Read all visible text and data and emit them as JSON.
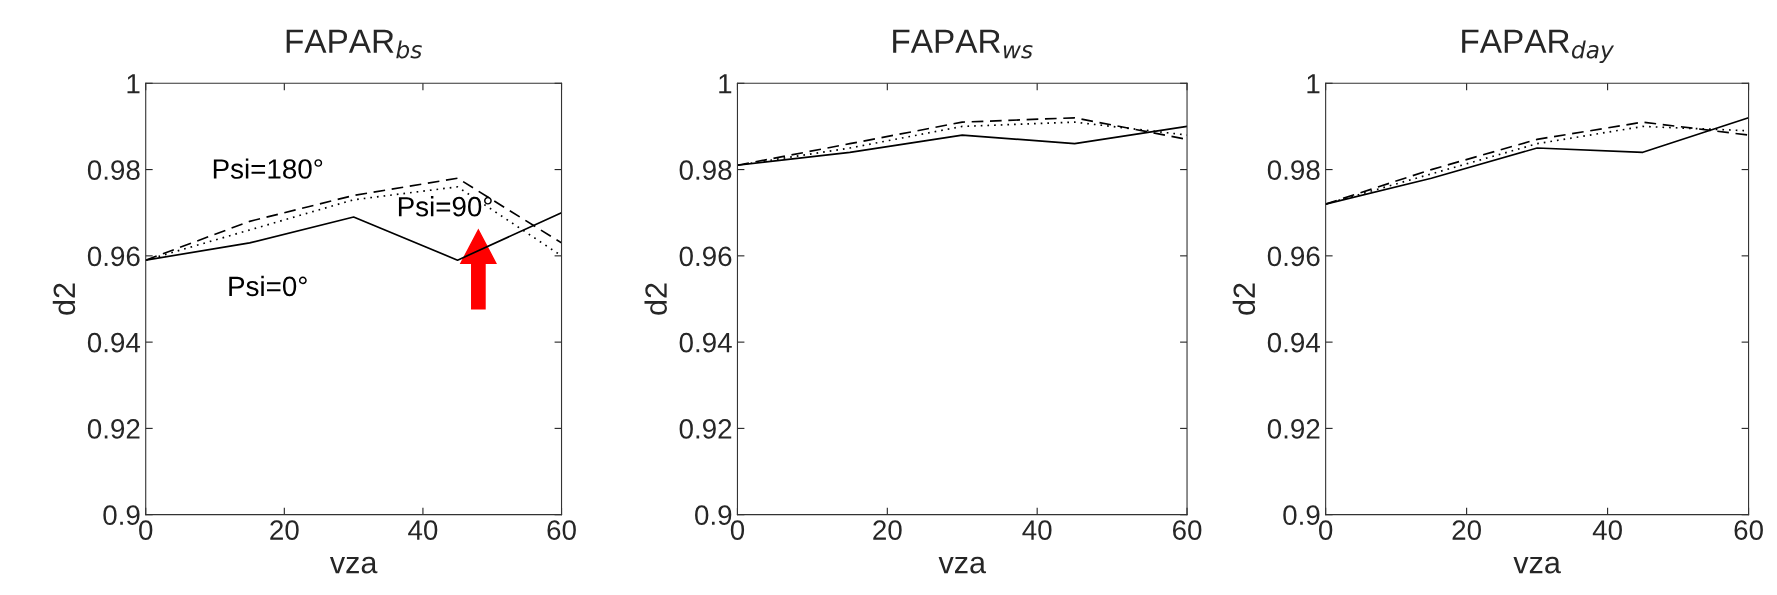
{
  "chart_data": [
    {
      "type": "line",
      "title": "FAPAR$_{bs}$",
      "xlabel": "vza",
      "ylabel": "d2",
      "x": [
        0,
        15,
        30,
        45,
        60
      ],
      "xlim": [
        0,
        60
      ],
      "xticks": [
        0,
        20,
        40,
        60
      ],
      "ylim": [
        0.9,
        1
      ],
      "yticks": [
        0.9,
        0.92,
        0.94,
        0.96,
        0.98,
        1
      ],
      "series": [
        {
          "name": "Psi=0°",
          "color": "#000000",
          "line_style": "solid",
          "values": [
            0.959,
            0.963,
            0.969,
            0.959,
            0.97
          ]
        },
        {
          "name": "Psi=90°",
          "color": "#000000",
          "line_style": "dotted",
          "values": [
            0.959,
            0.966,
            0.973,
            0.976,
            0.96
          ]
        },
        {
          "name": "Psi=180°",
          "color": "#000000",
          "line_style": "dashed",
          "values": [
            0.959,
            0.968,
            0.974,
            0.978,
            0.963
          ]
        }
      ]
    },
    {
      "type": "line",
      "title": "FAPAR$_{ws}$",
      "xlabel": "vza",
      "ylabel": "d2",
      "x": [
        0,
        15,
        30,
        45,
        60
      ],
      "xlim": [
        0,
        60
      ],
      "xticks": [
        0,
        20,
        40,
        60
      ],
      "ylim": [
        0.9,
        1
      ],
      "yticks": [
        0.9,
        0.92,
        0.94,
        0.96,
        0.98,
        1
      ],
      "series": [
        {
          "color": "#000000",
          "line_style": "solid",
          "values": [
            0.981,
            0.984,
            0.988,
            0.986,
            0.99
          ]
        },
        {
          "color": "#000000",
          "line_style": "dotted",
          "values": [
            0.981,
            0.985,
            0.99,
            0.991,
            0.988
          ]
        },
        {
          "color": "#000000",
          "line_style": "dashed",
          "values": [
            0.981,
            0.986,
            0.991,
            0.992,
            0.987
          ]
        }
      ]
    },
    {
      "type": "line",
      "title": "FAPAR$_{day}$",
      "xlabel": "vza",
      "ylabel": "d2",
      "x": [
        0,
        15,
        30,
        45,
        60
      ],
      "xlim": [
        0,
        60
      ],
      "xticks": [
        0,
        20,
        40,
        60
      ],
      "ylim": [
        0.9,
        1
      ],
      "yticks": [
        0.9,
        0.92,
        0.94,
        0.96,
        0.98,
        1
      ],
      "series": [
        {
          "color": "#000000",
          "line_style": "solid",
          "values": [
            0.972,
            0.978,
            0.985,
            0.984,
            0.992
          ]
        },
        {
          "color": "#000000",
          "line_style": "dotted",
          "values": [
            0.972,
            0.979,
            0.986,
            0.99,
            0.989
          ]
        },
        {
          "color": "#000000",
          "line_style": "dashed",
          "values": [
            0.972,
            0.98,
            0.987,
            0.991,
            0.988
          ]
        }
      ]
    }
  ]
}
